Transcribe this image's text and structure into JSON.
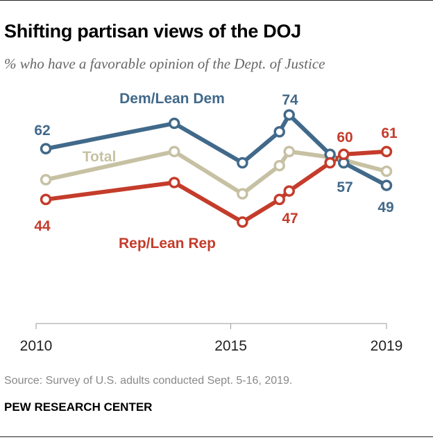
{
  "header": {
    "title": "Shifting partisan views of the DOJ",
    "subtitle": "% who have a favorable opinion of the Dept. of Justice"
  },
  "footer": {
    "source": "Source: Survey of U.S. adults conducted Sept. 5-16, 2019.",
    "org": "PEW RESEARCH CENTER"
  },
  "chart_data": {
    "type": "line",
    "title": "Shifting partisan views of the DOJ",
    "subtitle": "% who have a favorable opinion of the Dept. of Justice",
    "xlabel": "",
    "ylabel": "",
    "x_ticks": [
      "2010",
      "2015",
      "2019"
    ],
    "xlim": [
      2010,
      2019
    ],
    "ylim": [
      0,
      85
    ],
    "grid": false,
    "x": [
      2010.25,
      2013.55,
      2015.3,
      2016.25,
      2016.5,
      2017.55,
      2017.9,
      2019.0
    ],
    "series": [
      {
        "name": "Dem/Lean Dem",
        "color": "#41698a",
        "values": [
          62,
          71,
          57,
          68,
          74,
          60,
          57,
          49
        ],
        "data_labels": [
          {
            "index": 0,
            "text": "62"
          },
          {
            "index": 4,
            "text": "74"
          },
          {
            "index": 6,
            "text": "57"
          },
          {
            "index": 7,
            "text": "49"
          }
        ]
      },
      {
        "name": "Total",
        "color": "#c7c1a4",
        "values": [
          51,
          61,
          46,
          56,
          61,
          59,
          58,
          54
        ],
        "data_labels": []
      },
      {
        "name": "Rep/Lean Rep",
        "color": "#c43c2b",
        "values": [
          44,
          50,
          36,
          44,
          47,
          57,
          60,
          61
        ],
        "data_labels": [
          {
            "index": 0,
            "text": "44"
          },
          {
            "index": 4,
            "text": "47"
          },
          {
            "index": 6,
            "text": "60"
          },
          {
            "index": 7,
            "text": "61"
          }
        ]
      }
    ]
  }
}
